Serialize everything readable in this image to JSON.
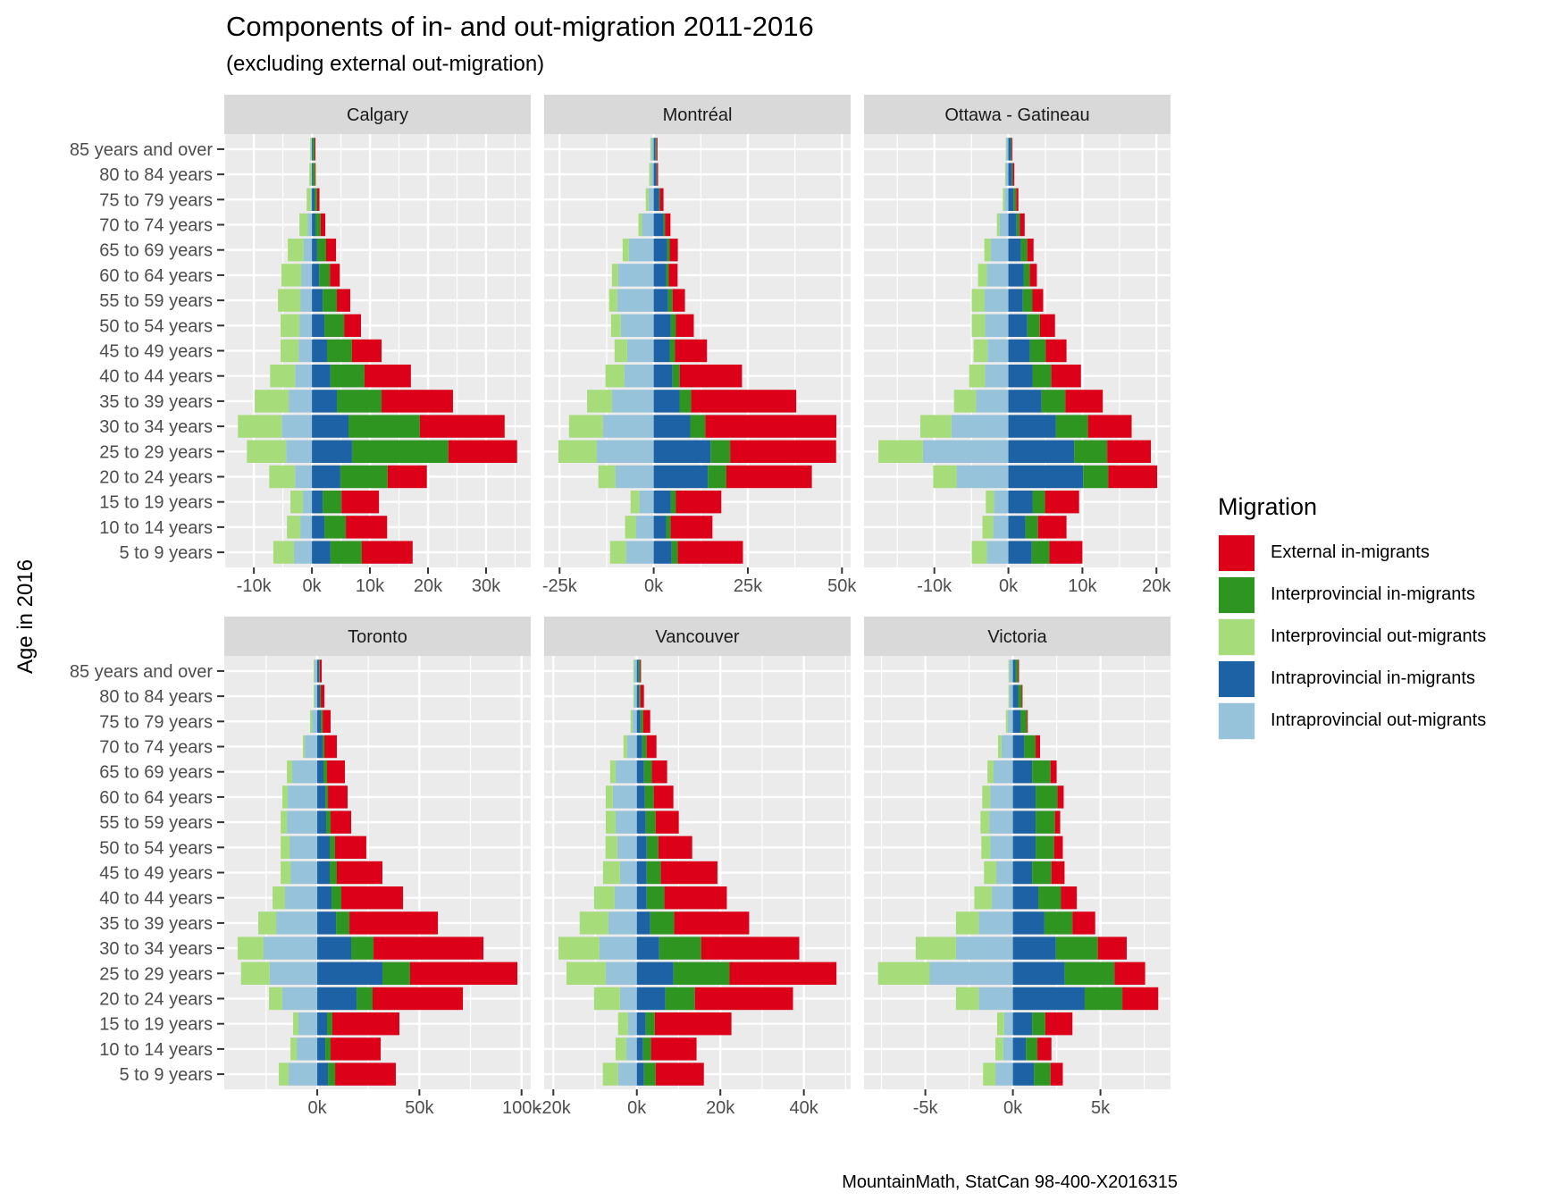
{
  "chart_data": {
    "type": "bar",
    "orientation": "horizontal",
    "stacked": true,
    "diverging": true,
    "title": "Components of in- and out-migration 2011-2016",
    "subtitle": "(excluding external out-migration)",
    "ylabel": "Age in 2016",
    "xlabel": "",
    "caption": "MountainMath, StatCan 98-400-X2016315",
    "grid": true,
    "legend": {
      "title": "Migration",
      "placement": "right",
      "entries": [
        {
          "key": "external_in",
          "label": "External in-migrants",
          "color": "#dc0019"
        },
        {
          "key": "inter_in",
          "label": "Interprovincial in-migrants",
          "color": "#2e9521"
        },
        {
          "key": "inter_out",
          "label": "Interprovincial out-migrants",
          "color": "#a6dc7a"
        },
        {
          "key": "intra_in",
          "label": "Intraprovincial in-migrants",
          "color": "#1d62a5"
        },
        {
          "key": "intra_out",
          "label": "Intraprovincial out-migrants",
          "color": "#96c2da"
        }
      ]
    },
    "categories": [
      "85 years and over",
      "80 to 84 years",
      "75 to 79 years",
      "70 to 74 years",
      "65 to 69 years",
      "60 to 64 years",
      "55 to 59 years",
      "50 to 54 years",
      "45 to 49 years",
      "40 to 44 years",
      "35 to 39 years",
      "30 to 34 years",
      "25 to 29 years",
      "20 to 24 years",
      "15 to 19 years",
      "10 to 14 years",
      "5 to 9 years"
    ],
    "panels": [
      {
        "name": "Calgary",
        "xlim": [
          -15100,
          37700
        ],
        "xticks": [
          -10000,
          0,
          10000,
          20000,
          30000
        ],
        "xtick_labels": [
          "-10k",
          "0k",
          "10k",
          "20k",
          "30k"
        ],
        "series": {
          "intra_out": [
            -100,
            -100,
            -200,
            -750,
            -1450,
            -1850,
            -2000,
            -2150,
            -2300,
            -2900,
            -4000,
            -5200,
            -4450,
            -2900,
            -1550,
            -2000,
            -3100
          ],
          "inter_out": [
            -200,
            -350,
            -700,
            -1400,
            -2700,
            -3400,
            -3850,
            -3250,
            -3100,
            -4300,
            -5850,
            -7550,
            -6750,
            -4450,
            -2150,
            -2300,
            -3550
          ],
          "intra_in": [
            200,
            200,
            450,
            600,
            900,
            1250,
            1850,
            2150,
            2600,
            3200,
            4300,
            6300,
            6900,
            4900,
            1850,
            2150,
            3200
          ],
          "inter_in": [
            250,
            350,
            450,
            900,
            1550,
            1850,
            2450,
            3400,
            4300,
            5850,
            7700,
            12300,
            16600,
            8150,
            3250,
            3700,
            5400
          ],
          "external_in": [
            150,
            100,
            400,
            800,
            1700,
            1700,
            2300,
            2900,
            5100,
            8000,
            12300,
            14600,
            11850,
            6750,
            6450,
            7100,
            8750
          ]
        }
      },
      {
        "name": "Montréal",
        "xlim": [
          -29100,
          52300
        ],
        "xticks": [
          -25000,
          0,
          25000,
          50000
        ],
        "xtick_labels": [
          "-25k",
          "0k",
          "25k",
          "50k"
        ],
        "series": {
          "intra_out": [
            -600,
            -700,
            -1400,
            -3100,
            -6600,
            -9450,
            -9700,
            -8750,
            -7100,
            -7800,
            -11100,
            -13500,
            -15100,
            -10200,
            -3800,
            -4750,
            -7350
          ],
          "inter_out": [
            -300,
            -500,
            -700,
            -950,
            -1650,
            -1650,
            -2150,
            -2600,
            -3300,
            -5000,
            -6600,
            -9000,
            -10200,
            -4500,
            -2350,
            -2850,
            -4250
          ],
          "intra_in": [
            500,
            700,
            1400,
            2600,
            3550,
            3300,
            3800,
            4500,
            4250,
            5000,
            6850,
            9700,
            15100,
            14400,
            4500,
            3300,
            4750
          ],
          "inter_in": [
            250,
            150,
            250,
            450,
            700,
            700,
            1200,
            1400,
            1400,
            1900,
            3100,
            4000,
            5200,
            4900,
            1400,
            1200,
            1650
          ],
          "external_in": [
            250,
            300,
            950,
            1400,
            2150,
            2350,
            3300,
            4750,
            8500,
            16550,
            27900,
            34800,
            28150,
            22700,
            12050,
            11100,
            17300
          ]
        }
      },
      {
        "name": "Ottawa - Gatineau",
        "xlim": [
          -19500,
          21900
        ],
        "xticks": [
          -10000,
          0,
          10000,
          20000
        ],
        "xtick_labels": [
          "-10k",
          "0k",
          "10k",
          "20k"
        ],
        "series": {
          "intra_out": [
            -250,
            -350,
            -500,
            -1200,
            -2400,
            -2900,
            -3250,
            -3150,
            -2800,
            -3150,
            -4350,
            -7700,
            -11550,
            -7000,
            -1950,
            -2050,
            -2900
          ],
          "inter_out": [
            -100,
            -100,
            -250,
            -350,
            -850,
            -1200,
            -1700,
            -1800,
            -1900,
            -2150,
            -3000,
            -4200,
            -6000,
            -3150,
            -1100,
            -1450,
            -2050
          ],
          "intra_in": [
            350,
            500,
            700,
            1100,
            1700,
            2050,
            1950,
            2550,
            2900,
            3250,
            4450,
            6400,
            8900,
            10100,
            3250,
            2300,
            3150
          ],
          "inter_in": [
            100,
            100,
            350,
            450,
            850,
            850,
            1300,
            1700,
            2150,
            2550,
            3250,
            4350,
            4450,
            3400,
            1700,
            1700,
            2400
          ],
          "external_in": [
            100,
            200,
            300,
            650,
            850,
            950,
            1450,
            2050,
            2800,
            4000,
            5050,
            5900,
            5900,
            6600,
            4600,
            3850,
            4450
          ]
        }
      },
      {
        "name": "Toronto",
        "xlim": [
          -45500,
          104500
        ],
        "xticks": [
          0,
          50000,
          100000
        ],
        "xtick_labels": [
          "0k",
          "50k",
          "100k"
        ],
        "series": {
          "intra_out": [
            -1300,
            -1300,
            -2600,
            -6100,
            -12250,
            -14450,
            -14850,
            -13550,
            -13100,
            -15750,
            -20100,
            -26250,
            -23300,
            -17050,
            -9200,
            -10050,
            -14000
          ],
          "inter_out": [
            -450,
            -450,
            -900,
            -900,
            -2600,
            -2600,
            -3050,
            -4350,
            -4800,
            -6100,
            -8750,
            -12700,
            -14000,
            -6550,
            -2600,
            -3050,
            -4800
          ],
          "intra_in": [
            900,
            1300,
            1750,
            2600,
            3050,
            3950,
            4350,
            6100,
            6100,
            7000,
            9200,
            16600,
            31900,
            19250,
            4800,
            3950,
            5250
          ],
          "inter_in": [
            300,
            450,
            900,
            900,
            1750,
            1300,
            2200,
            2600,
            3500,
            4800,
            6550,
            10950,
            13550,
            7850,
            2600,
            2600,
            3500
          ],
          "external_in": [
            1000,
            1750,
            3900,
            6100,
            8750,
            9600,
            10050,
            15300,
            22300,
            30200,
            43300,
            53800,
            52500,
            44200,
            32800,
            24500,
            29700
          ]
        }
      },
      {
        "name": "Vancouver",
        "xlim": [
          -22200,
          51200
        ],
        "xticks": [
          -20000,
          0,
          20000,
          40000
        ],
        "xtick_labels": [
          "-20k",
          "0k",
          "20k",
          "40k"
        ],
        "series": {
          "intra_out": [
            -650,
            -650,
            -1050,
            -2350,
            -5100,
            -5750,
            -5100,
            -4700,
            -4050,
            -5350,
            -6850,
            -8950,
            -7450,
            -4050,
            -2150,
            -2550,
            -4500
          ],
          "inter_out": [
            -200,
            -200,
            -450,
            -850,
            -1300,
            -1700,
            -2350,
            -2800,
            -4050,
            -4900,
            -6850,
            -9800,
            -9400,
            -6200,
            -2350,
            -2550,
            -3650
          ],
          "intra_in": [
            450,
            550,
            850,
            1300,
            1700,
            1900,
            2150,
            2350,
            2350,
            2350,
            3200,
            5350,
            8750,
            6850,
            2150,
            1500,
            1700
          ],
          "inter_in": [
            350,
            300,
            650,
            1050,
            1900,
            2150,
            2350,
            2800,
            3400,
            4250,
            5750,
            10050,
            13450,
            7050,
            2150,
            1900,
            2800
          ],
          "external_in": [
            200,
            850,
            1700,
            2350,
            3650,
            4700,
            5550,
            8100,
            13550,
            14950,
            17950,
            23500,
            25600,
            23500,
            18350,
            10900,
            11550
          ]
        }
      },
      {
        "name": "Victoria",
        "xlim": [
          -8500,
          9000
        ],
        "xticks": [
          -5000,
          0,
          5000
        ],
        "xtick_labels": [
          "-5k",
          "0k",
          "5k"
        ],
        "series": {
          "intra_out": [
            -200,
            -200,
            -300,
            -650,
            -1100,
            -1300,
            -1350,
            -1300,
            -950,
            -1200,
            -1950,
            -3250,
            -4750,
            -1950,
            -500,
            -550,
            -1000
          ],
          "inter_out": [
            -50,
            -50,
            -100,
            -200,
            -350,
            -450,
            -500,
            -500,
            -700,
            -1000,
            -1300,
            -2300,
            -2950,
            -1300,
            -400,
            -450,
            -700
          ],
          "intra_in": [
            150,
            300,
            450,
            650,
            1100,
            1300,
            1300,
            1300,
            1100,
            1450,
            1800,
            2450,
            2950,
            4100,
            1100,
            750,
            1200
          ],
          "inter_in": [
            150,
            200,
            350,
            650,
            1050,
            1250,
            1100,
            1050,
            1100,
            1300,
            1600,
            2400,
            2850,
            2150,
            750,
            650,
            950
          ],
          "external_in": [
            50,
            50,
            50,
            250,
            350,
            350,
            300,
            500,
            750,
            900,
            1300,
            1650,
            1750,
            2050,
            1550,
            800,
            700
          ]
        }
      }
    ]
  }
}
